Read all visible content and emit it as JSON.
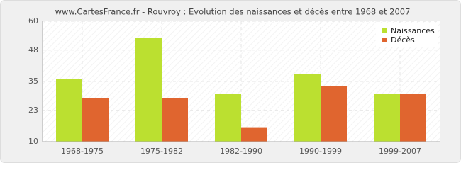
{
  "chart_data": {
    "type": "bar",
    "title": "www.CartesFrance.fr - Rouvroy : Evolution des naissances et décès entre 1968 et 2007",
    "categories": [
      "1968-1975",
      "1975-1982",
      "1982-1990",
      "1990-1999",
      "1999-2007"
    ],
    "series": [
      {
        "name": "Naissances",
        "color": "#bbe030",
        "values": [
          36,
          53,
          30,
          38,
          30
        ]
      },
      {
        "name": "Décès",
        "color": "#e0652f",
        "values": [
          28,
          28,
          16,
          33,
          30
        ]
      }
    ],
    "ylim": [
      10,
      60
    ],
    "yticks": [
      10,
      23,
      35,
      48,
      60
    ],
    "grid": true,
    "legend": "top-right"
  }
}
